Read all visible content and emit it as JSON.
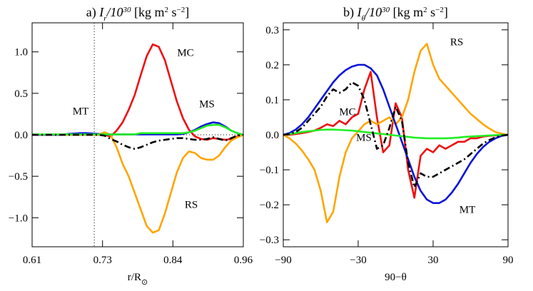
{
  "chart_data": [
    {
      "type": "line",
      "title_parts": [
        {
          "text": "a) "
        },
        {
          "text": "I",
          "style": "italic"
        },
        {
          "text": "r",
          "script": "sub",
          "style": "italic"
        },
        {
          "text": "/10",
          "style": "italic"
        },
        {
          "text": "30",
          "script": "super",
          "style": "italic"
        },
        {
          "text": " [kg m"
        },
        {
          "text": "2",
          "script": "super"
        },
        {
          "text": " s"
        },
        {
          "text": "−2",
          "script": "super"
        },
        {
          "text": "]"
        }
      ],
      "xlabel_parts": [
        {
          "text": "r/R"
        },
        {
          "text": "⊙",
          "script": "sub"
        }
      ],
      "xlim": [
        0.61,
        0.96
      ],
      "xticks": [
        0.61,
        {
          "value": 0.7267,
          "label": "0.73"
        },
        {
          "value": 0.8433,
          "label": "0.84"
        },
        0.96
      ],
      "ylim": [
        -1.35,
        1.35
      ],
      "yticks": [
        {
          "value": -1,
          "label": "−1.0"
        },
        {
          "value": -0.5,
          "label": "−0.5"
        },
        {
          "value": 0,
          "label": "0.0"
        },
        {
          "value": 0.5,
          "label": "0.5"
        },
        {
          "value": 1,
          "label": "1.0"
        }
      ],
      "vline": 0.713,
      "hline": 0,
      "x": [
        0.61,
        0.62,
        0.63,
        0.64,
        0.65,
        0.66,
        0.67,
        0.68,
        0.69,
        0.7,
        0.71,
        0.72,
        0.73,
        0.74,
        0.75,
        0.76,
        0.77,
        0.78,
        0.79,
        0.8,
        0.81,
        0.82,
        0.83,
        0.84,
        0.85,
        0.86,
        0.87,
        0.88,
        0.89,
        0.9,
        0.91,
        0.92,
        0.93,
        0.94,
        0.95,
        0.96
      ],
      "series": [
        {
          "name": "MC",
          "color": "#ee1111",
          "values": [
            0,
            0,
            0,
            0,
            0,
            0,
            0,
            0,
            0,
            0,
            0,
            0,
            0,
            -0.02,
            0.05,
            0.15,
            0.3,
            0.48,
            0.72,
            0.95,
            1.09,
            1.06,
            0.9,
            0.65,
            0.4,
            0.2,
            0.06,
            -0.02,
            -0.05,
            -0.06,
            -0.04,
            -0.05,
            -0.06,
            -0.05,
            -0.02,
            0
          ]
        },
        {
          "name": "RS",
          "color": "#ffa500",
          "values": [
            0,
            0,
            0,
            0,
            0,
            0,
            0,
            0,
            0,
            0,
            0,
            0,
            0.03,
            0,
            -0.15,
            -0.35,
            -0.5,
            -0.7,
            -0.9,
            -1.1,
            -1.18,
            -1.15,
            -0.95,
            -0.7,
            -0.45,
            -0.28,
            -0.2,
            -0.22,
            -0.28,
            -0.3,
            -0.3,
            -0.25,
            -0.15,
            -0.07,
            -0.03,
            0
          ]
        },
        {
          "name": "MT",
          "color": "#0a14d8",
          "values": [
            0,
            0,
            0,
            0,
            0,
            0,
            0.01,
            0.015,
            0.02,
            0.02,
            0.015,
            0.01,
            0,
            0.005,
            0.005,
            0.005,
            0.005,
            0.005,
            0.005,
            0.005,
            0.005,
            0.005,
            0.005,
            0.005,
            0.005,
            0.01,
            0.03,
            0.06,
            0.1,
            0.13,
            0.15,
            0.14,
            0.1,
            0.05,
            0.02,
            0
          ]
        },
        {
          "name": "MS",
          "color": "#22ee22",
          "values": [
            0.005,
            0.005,
            0.005,
            0.005,
            0.005,
            0.005,
            0.005,
            0.005,
            0.005,
            0.005,
            0.005,
            0.005,
            0.005,
            0.005,
            0.005,
            0.005,
            0.005,
            0.005,
            0.02,
            0.02,
            0.02,
            0.02,
            0.02,
            0.02,
            0.02,
            0.02,
            0.03,
            0.05,
            0.08,
            0.11,
            0.12,
            0.12,
            0.09,
            0.05,
            0.02,
            0
          ]
        },
        {
          "color": "#000000",
          "dash": true,
          "values": [
            0,
            0,
            0,
            0,
            0,
            0,
            0,
            0,
            0,
            0,
            0,
            0,
            -0.01,
            -0.05,
            -0.08,
            -0.12,
            -0.15,
            -0.17,
            -0.15,
            -0.12,
            -0.09,
            -0.07,
            -0.06,
            -0.05,
            -0.04,
            -0.04,
            -0.05,
            -0.06,
            -0.06,
            -0.05,
            -0.03,
            -0.05,
            -0.07,
            -0.04,
            -0.01,
            0
          ]
        }
      ]
    },
    {
      "type": "line",
      "title_parts": [
        {
          "text": "b) "
        },
        {
          "text": "I",
          "style": "italic"
        },
        {
          "text": "θ",
          "script": "sub",
          "style": "italic"
        },
        {
          "text": "/10",
          "style": "italic"
        },
        {
          "text": "30",
          "script": "super",
          "style": "italic"
        },
        {
          "text": " [kg m"
        },
        {
          "text": "2",
          "script": "super"
        },
        {
          "text": " s"
        },
        {
          "text": "−2",
          "script": "super"
        },
        {
          "text": "]"
        }
      ],
      "xlabel_parts": [
        {
          "text": "90−θ"
        }
      ],
      "xlim": [
        -90,
        90
      ],
      "xticks": [
        {
          "value": -90,
          "label": "−90"
        },
        {
          "value": -30,
          "label": "−30"
        },
        30,
        90
      ],
      "ylim": [
        -0.32,
        0.32
      ],
      "yticks": [
        {
          "value": -0.3,
          "label": "−0.3"
        },
        {
          "value": -0.2,
          "label": "−0.2"
        },
        {
          "value": -0.1,
          "label": "−0.1"
        },
        {
          "value": 0,
          "label": "0.0"
        },
        0.1,
        0.2,
        0.3
      ],
      "x": [
        -90,
        -85,
        -80,
        -75,
        -70,
        -65,
        -60,
        -55,
        -50,
        -45,
        -40,
        -35,
        -30,
        -25,
        -20,
        -15,
        -10,
        -5,
        0,
        5,
        10,
        15,
        20,
        25,
        30,
        35,
        40,
        45,
        50,
        55,
        60,
        65,
        70,
        75,
        80,
        85,
        90
      ],
      "series": [
        {
          "name": "MC",
          "color": "#ee1111",
          "values": [
            0,
            0,
            0.002,
            0.005,
            0.008,
            0.012,
            0.02,
            0.03,
            0.025,
            0.04,
            0.03,
            0.05,
            0.06,
            0.13,
            0.18,
            0.05,
            -0.05,
            -0.03,
            0.09,
            0.05,
            -0.1,
            -0.18,
            -0.06,
            -0.04,
            -0.05,
            -0.03,
            -0.04,
            -0.03,
            -0.02,
            -0.02,
            -0.01,
            -0.01,
            -0.005,
            -0.003,
            -0.002,
            -0.001,
            0
          ]
        },
        {
          "name": "RS",
          "color": "#ffa500",
          "values": [
            0,
            -0.01,
            -0.025,
            -0.045,
            -0.07,
            -0.1,
            -0.16,
            -0.25,
            -0.22,
            -0.12,
            -0.05,
            -0.01,
            0.01,
            0.03,
            0.04,
            0.03,
            0.04,
            0.05,
            0.03,
            0.05,
            0.1,
            0.18,
            0.24,
            0.26,
            0.2,
            0.16,
            0.14,
            0.12,
            0.1,
            0.08,
            0.06,
            0.045,
            0.03,
            0.018,
            0.008,
            0.003,
            0
          ]
        },
        {
          "name": "MT",
          "color": "#0a14d8",
          "values": [
            0,
            0.005,
            0.015,
            0.03,
            0.05,
            0.075,
            0.1,
            0.125,
            0.15,
            0.17,
            0.185,
            0.195,
            0.2,
            0.2,
            0.19,
            0.17,
            0.13,
            0.08,
            0.03,
            -0.02,
            -0.07,
            -0.12,
            -0.16,
            -0.185,
            -0.195,
            -0.195,
            -0.185,
            -0.165,
            -0.14,
            -0.11,
            -0.08,
            -0.055,
            -0.035,
            -0.02,
            -0.01,
            -0.003,
            0
          ]
        },
        {
          "name": "MS",
          "color": "#22ee22",
          "values": [
            0,
            0.002,
            0.005,
            0.008,
            0.01,
            0.012,
            0.014,
            0.015,
            0.015,
            0.014,
            0.013,
            0.012,
            0.01,
            0.008,
            0.006,
            0.004,
            0.002,
            0,
            -0.002,
            -0.004,
            -0.006,
            -0.008,
            -0.009,
            -0.01,
            -0.01,
            -0.01,
            -0.01,
            -0.009,
            -0.008,
            -0.006,
            -0.005,
            -0.004,
            -0.003,
            -0.002,
            -0.001,
            0,
            0
          ]
        },
        {
          "color": "#000000",
          "dash": true,
          "values": [
            0,
            0.002,
            0.008,
            0.02,
            0.04,
            0.06,
            0.08,
            0.11,
            0.13,
            0.12,
            0.13,
            0.15,
            0.14,
            0.1,
            0.03,
            -0.04,
            -0.03,
            0.02,
            0.08,
            0.04,
            -0.08,
            -0.15,
            -0.11,
            -0.12,
            -0.12,
            -0.11,
            -0.1,
            -0.09,
            -0.08,
            -0.07,
            -0.055,
            -0.04,
            -0.025,
            -0.015,
            -0.007,
            -0.002,
            0
          ]
        }
      ]
    }
  ]
}
